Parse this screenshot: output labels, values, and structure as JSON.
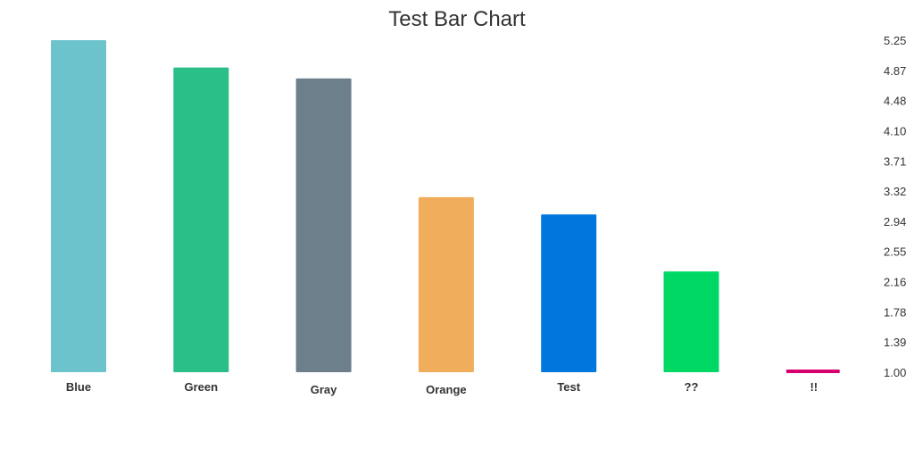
{
  "chart_data": {
    "type": "bar",
    "title": "Test Bar Chart",
    "categories": [
      "Blue",
      "Green",
      "Gray",
      "Orange",
      "Test",
      "??",
      "!!"
    ],
    "values": [
      5.25,
      4.9,
      4.76,
      3.24,
      3.02,
      2.29,
      1.0
    ],
    "colors": [
      "#6cc3cc",
      "#2abf88",
      "#6c7f8a",
      "#f0ad5c",
      "#0077dd",
      "#00d866",
      "#d5006d"
    ],
    "y_ticks": [
      "1.00",
      "1.39",
      "1.78",
      "2.16",
      "2.55",
      "2.94",
      "3.32",
      "3.71",
      "4.10",
      "4.48",
      "4.87",
      "5.25"
    ],
    "ylim": [
      1.0,
      5.25
    ],
    "y_axis_position": "right",
    "grid": false,
    "legend": "none"
  }
}
